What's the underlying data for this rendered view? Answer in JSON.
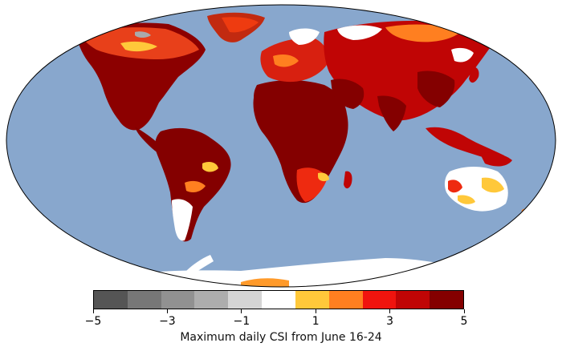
{
  "map": {
    "projection": "Robinson",
    "ocean_color": "#88a7cd",
    "legend_title": "Maximum daily CSI from June 16-24"
  },
  "colorbar": {
    "colors": [
      "#555555",
      "#777777",
      "#919191",
      "#adadad",
      "#d5d5d5",
      "#ffffff",
      "#ffc83a",
      "#ff7f20",
      "#f0140e",
      "#c00505",
      "#840000"
    ],
    "min": -5,
    "max": 5,
    "tick_values": [
      -5,
      -3,
      -1,
      1,
      3,
      5
    ],
    "tick_labels": [
      "−5",
      "−3",
      "−1",
      "1",
      "3",
      "5"
    ]
  }
}
